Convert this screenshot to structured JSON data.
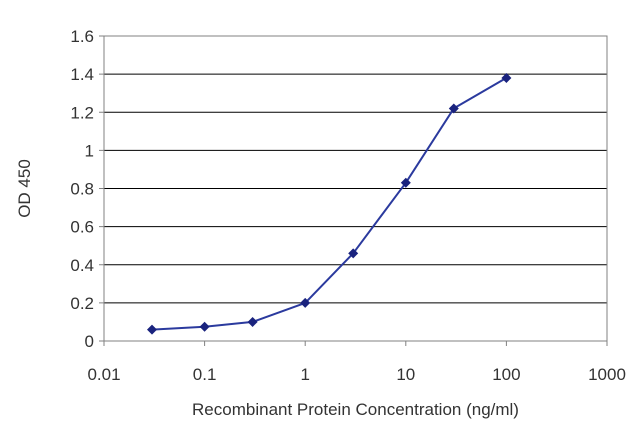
{
  "chart_data": {
    "type": "line",
    "title": "",
    "xlabel": "Recombinant Protein Concentration (ng/ml)",
    "ylabel": "OD 450",
    "x_scale": "log",
    "xlim": [
      0.01,
      1000
    ],
    "ylim": [
      0,
      1.6
    ],
    "x_ticks": [
      0.01,
      0.1,
      1,
      10,
      100,
      1000
    ],
    "x_tick_labels": [
      "0.01",
      "0.1",
      "1",
      "10",
      "100",
      "1000"
    ],
    "y_ticks": [
      0,
      0.2,
      0.4,
      0.6,
      0.8,
      1,
      1.2,
      1.4,
      1.6
    ],
    "y_tick_labels": [
      "0",
      "0.2",
      "0.4",
      "0.6",
      "0.8",
      "1",
      "1.2",
      "1.4",
      "1.6"
    ],
    "grid": "horizontal",
    "legend": "none",
    "series": [
      {
        "x": [
          0.03,
          0.1,
          0.3,
          1,
          3,
          10,
          30,
          100
        ],
        "y": [
          0.06,
          0.075,
          0.1,
          0.2,
          0.46,
          0.83,
          1.22,
          1.38
        ]
      }
    ],
    "colors": {
      "line": "#2b3a9e",
      "marker": "#1a237e",
      "grid": "#000000",
      "plot_border": "#808080",
      "text": "#333333"
    }
  }
}
